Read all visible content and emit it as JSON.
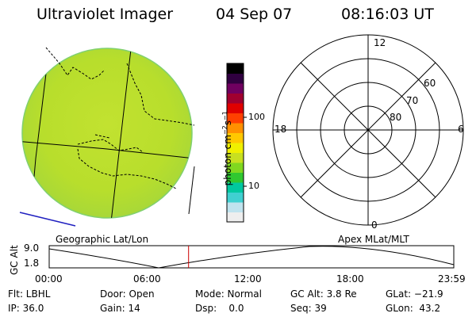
{
  "header": {
    "instrument": "Ultraviolet Imager",
    "date": "04 Sep 07",
    "time": "08:16:03 UT"
  },
  "colorbar": {
    "label_main": "photon cm",
    "label_exp1": "−2",
    "label_s": "s",
    "label_exp2": "−1",
    "tick_high": "100",
    "tick_low": "10",
    "scale": "log",
    "colors": [
      "#eeeeee",
      "#bfe3ee",
      "#40d0d0",
      "#00c8a0",
      "#30c830",
      "#80d820",
      "#c8e020",
      "#f0f000",
      "#ffc800",
      "#ff9000",
      "#ff4000",
      "#e00000",
      "#a00030",
      "#700060",
      "#300040",
      "#000000"
    ]
  },
  "polar_plot": {
    "mlt_top": "12",
    "mlt_bottom": "0",
    "mlt_left": "18",
    "mlt_right": "6",
    "lat_60": "60",
    "lat_70": "70",
    "lat_80": "80"
  },
  "labels": {
    "geographic": "Geographic Lat/Lon",
    "apex": "Apex MLat/MLT"
  },
  "timeline": {
    "ylabel": "GC Alt",
    "y_high": "9.0",
    "y_low": "1.8",
    "ticks": [
      "00:00",
      "06:00",
      "12:00",
      "18:00",
      "23:59"
    ],
    "current_time_hours": 8.27,
    "marker_color": "#cc0000"
  },
  "status": {
    "filter": "Flt: LBHL",
    "door": "Door: Open",
    "mode": "Mode: Normal",
    "gc_alt": "GC Alt: 3.8 Re",
    "glat": "GLat: −21.9",
    "ip": "IP: 36.0",
    "gain": "Gain: 14",
    "dsp": "Dsp:    0.0",
    "seq": "Seq: 39",
    "glon": "GLon:  43.2"
  }
}
